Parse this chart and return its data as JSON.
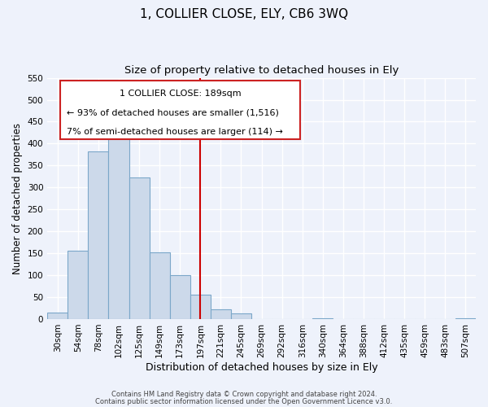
{
  "title": "1, COLLIER CLOSE, ELY, CB6 3WQ",
  "subtitle": "Size of property relative to detached houses in Ely",
  "xlabel": "Distribution of detached houses by size in Ely",
  "ylabel": "Number of detached properties",
  "bar_labels": [
    "30sqm",
    "54sqm",
    "78sqm",
    "102sqm",
    "125sqm",
    "149sqm",
    "173sqm",
    "197sqm",
    "221sqm",
    "245sqm",
    "269sqm",
    "292sqm",
    "316sqm",
    "340sqm",
    "364sqm",
    "388sqm",
    "412sqm",
    "435sqm",
    "459sqm",
    "483sqm",
    "507sqm"
  ],
  "bar_values": [
    15,
    155,
    383,
    420,
    322,
    153,
    100,
    55,
    22,
    12,
    0,
    0,
    0,
    2,
    0,
    0,
    0,
    0,
    0,
    0,
    2
  ],
  "bar_color": "#ccd9ea",
  "bar_edge_color": "#7ba7c9",
  "vline_x": 7,
  "vline_color": "#cc0000",
  "ylim": [
    0,
    550
  ],
  "yticks": [
    0,
    50,
    100,
    150,
    200,
    250,
    300,
    350,
    400,
    450,
    500,
    550
  ],
  "ann_line1": "1 COLLIER CLOSE: 189sqm",
  "ann_line2": "← 93% of detached houses are smaller (1,516)",
  "ann_line3": "7% of semi-detached houses are larger (114) →",
  "footer_line1": "Contains HM Land Registry data © Crown copyright and database right 2024.",
  "footer_line2": "Contains public sector information licensed under the Open Government Licence v3.0.",
  "background_color": "#eef2fb",
  "grid_color": "#ffffff",
  "title_fontsize": 11,
  "subtitle_fontsize": 9.5,
  "xlabel_fontsize": 9,
  "ylabel_fontsize": 8.5,
  "tick_fontsize": 7.5,
  "ann_fontsize": 8,
  "footer_fontsize": 6
}
